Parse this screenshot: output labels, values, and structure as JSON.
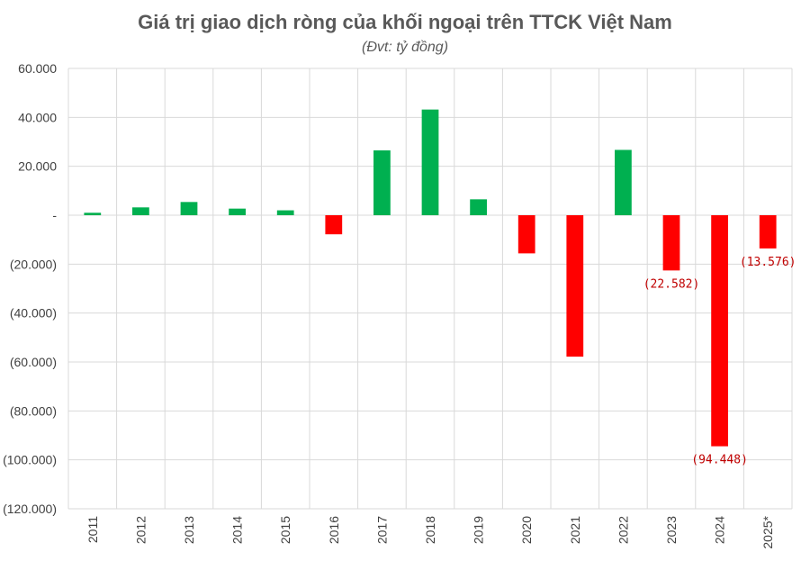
{
  "chart_data": {
    "type": "bar",
    "title": "Giá trị giao dịch ròng của khối ngoại trên TTCK Việt Nam",
    "subtitle": "(Đvt: tỷ đồng)",
    "categories": [
      "2011",
      "2012",
      "2013",
      "2014",
      "2015",
      "2016",
      "2017",
      "2018",
      "2019",
      "2020",
      "2021",
      "2022",
      "2023",
      "2024",
      "2025*"
    ],
    "values": [
      1000,
      3200,
      5400,
      2700,
      2000,
      -7800,
      26500,
      43200,
      6500,
      -15600,
      -57800,
      26700,
      -22582,
      -94448,
      -13576
    ],
    "data_labels": [
      {
        "index": 12,
        "text": "(22.582)"
      },
      {
        "index": 13,
        "text": "(94.448)"
      },
      {
        "index": 14,
        "text": "(13.576)"
      }
    ],
    "ylim": [
      -120000,
      60000
    ],
    "yticks": [
      {
        "value": 60000,
        "label": "60.000"
      },
      {
        "value": 40000,
        "label": "40.000"
      },
      {
        "value": 20000,
        "label": "20.000"
      },
      {
        "value": 0,
        "label": "-"
      },
      {
        "value": -20000,
        "label": "(20.000)"
      },
      {
        "value": -40000,
        "label": "(40.000)"
      },
      {
        "value": -60000,
        "label": "(60.000)"
      },
      {
        "value": -80000,
        "label": "(80.000)"
      },
      {
        "value": -100000,
        "label": "(100.000)"
      },
      {
        "value": -120000,
        "label": "(120.000)"
      }
    ],
    "grid": true,
    "legend": "none",
    "colors": {
      "positive": "#00B050",
      "negative": "#FF0000",
      "grid": "#D9D9D9",
      "label_negative": "#C00000"
    }
  }
}
